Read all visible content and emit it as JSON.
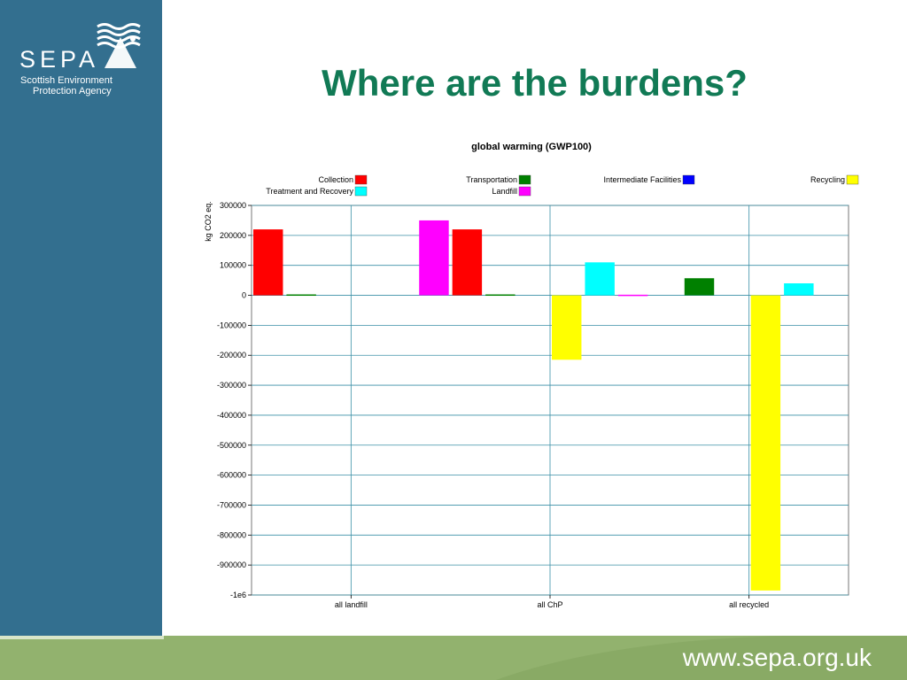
{
  "brand": {
    "logo_text": "SEPA",
    "org_line1": "Scottish Environment",
    "org_line2": "Protection Agency",
    "url": "www.sepa.org.uk"
  },
  "slide": {
    "title": "Where are the burdens?"
  },
  "colors": {
    "sidebar": "#336f8f",
    "footer": "#92b26e",
    "title": "#117a55",
    "grid": "#3a8fa6"
  },
  "chart_data": {
    "type": "bar",
    "title": "global warming (GWP100)",
    "ylabel": "kg CO2 eq.",
    "xlabel": "",
    "ylim": [
      -1000000,
      300000
    ],
    "y_ticks": [
      "300000",
      "200000",
      "100000",
      "0",
      "-100000",
      "-200000",
      "-300000",
      "-400000",
      "-500000",
      "-600000",
      "-700000",
      "-800000",
      "-900000",
      "-1e6"
    ],
    "categories": [
      "all landfill",
      "all ChP",
      "all recycled"
    ],
    "series": [
      {
        "name": "Collection",
        "color": "#ff0000",
        "values": [
          220000,
          220000,
          0
        ]
      },
      {
        "name": "Transportation",
        "color": "#008000",
        "values": [
          3000,
          3000,
          57000
        ]
      },
      {
        "name": "Intermediate Facilities",
        "color": "#0000ff",
        "values": [
          0,
          0,
          0
        ]
      },
      {
        "name": "Recycling",
        "color": "#ffff00",
        "values": [
          0,
          -215000,
          -985000
        ]
      },
      {
        "name": "Treatment and Recovery",
        "color": "#00ffff",
        "values": [
          0,
          110000,
          40000
        ]
      },
      {
        "name": "Landfill",
        "color": "#ff00ff",
        "values": [
          250000,
          2000,
          0
        ]
      }
    ],
    "legend_placement": "top",
    "grid": true
  }
}
